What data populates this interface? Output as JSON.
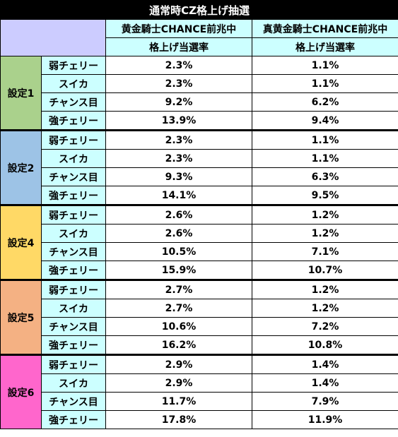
{
  "title": "通常時CZ格上げ抽選",
  "columns": [
    {
      "name": "黄金騎士CHANCE前兆中",
      "sub": "格上げ当選率"
    },
    {
      "name": "真黄金騎士CHANCE前兆中",
      "sub": "格上げ当選率"
    }
  ],
  "roles": [
    "弱チェリー",
    "スイカ",
    "チャンス目",
    "強チェリー"
  ],
  "groups": [
    {
      "setting": "設定1",
      "color": "#aad18c",
      "rows": [
        [
          "2.3%",
          "1.1%"
        ],
        [
          "2.3%",
          "1.1%"
        ],
        [
          "9.2%",
          "6.2%"
        ],
        [
          "13.9%",
          "9.4%"
        ]
      ]
    },
    {
      "setting": "設定2",
      "color": "#9dc3e6",
      "rows": [
        [
          "2.3%",
          "1.1%"
        ],
        [
          "2.3%",
          "1.1%"
        ],
        [
          "9.3%",
          "6.3%"
        ],
        [
          "14.1%",
          "9.5%"
        ]
      ]
    },
    {
      "setting": "設定4",
      "color": "#ffd966",
      "rows": [
        [
          "2.6%",
          "1.2%"
        ],
        [
          "2.6%",
          "1.2%"
        ],
        [
          "10.5%",
          "7.1%"
        ],
        [
          "15.9%",
          "10.7%"
        ]
      ]
    },
    {
      "setting": "設定5",
      "color": "#f4b183",
      "rows": [
        [
          "2.7%",
          "1.2%"
        ],
        [
          "2.7%",
          "1.2%"
        ],
        [
          "10.6%",
          "7.2%"
        ],
        [
          "16.2%",
          "10.8%"
        ]
      ]
    },
    {
      "setting": "設定6",
      "color": "#ff66cc",
      "rows": [
        [
          "2.9%",
          "1.4%"
        ],
        [
          "2.9%",
          "1.4%"
        ],
        [
          "11.7%",
          "7.9%"
        ],
        [
          "17.8%",
          "11.9%"
        ]
      ]
    }
  ]
}
